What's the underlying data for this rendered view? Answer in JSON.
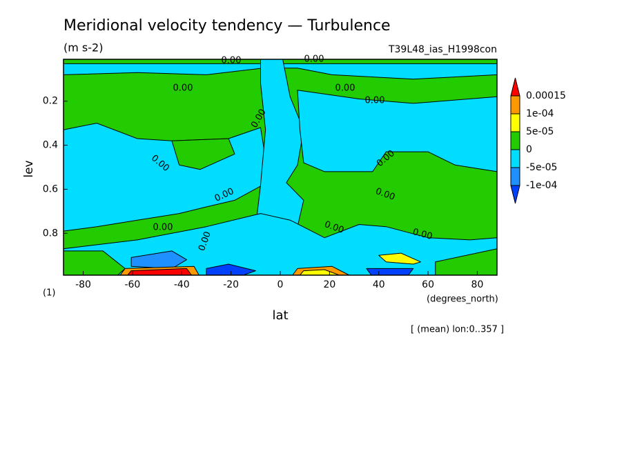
{
  "chart_data": {
    "type": "contour",
    "title": "Meridional velocity tendency — Turbulence",
    "units": "(m s-2)",
    "run": "T39L48_ias_H1998con",
    "xlabel": "lat",
    "x_unit": "(degrees_north)",
    "ylabel": "lev",
    "y_unit": "(1)",
    "footnote": "[ (mean) lon:0..357 ]",
    "xlim": [
      -88,
      88
    ],
    "ylim": [
      0.99,
      0.01
    ],
    "xticks": [
      -80,
      -60,
      -40,
      -20,
      0,
      20,
      40,
      60,
      80
    ],
    "yticks": [
      0.2,
      0.4,
      0.6,
      0.8
    ],
    "levels": [
      {
        "value": 0.00015,
        "label": "0.00015"
      },
      {
        "value": 0.0001,
        "label": "1e-04"
      },
      {
        "value": 5e-05,
        "label": "5e-05"
      },
      0,
      {
        "value": -5e-05,
        "label": "-5e-05"
      },
      {
        "value": -0.0001,
        "label": "-1e-04"
      }
    ],
    "colors": [
      "#ff0000",
      "#ff9900",
      "#ffff00",
      "#22cc00",
      "#00ddff",
      "#1e90ff",
      "#0040ff"
    ],
    "background_band": 3,
    "regions": [
      {
        "band": 4,
        "lat": [
          -88,
          88,
          88,
          54,
          21,
          7,
          -7,
          -30,
          -58,
          -88
        ],
        "lev": [
          0.03,
          0.03,
          0.08,
          0.1,
          0.08,
          0.05,
          0.05,
          0.08,
          0.07,
          0.08
        ]
      },
      {
        "band": 4,
        "lat": [
          -88,
          -74.5,
          -58,
          -44,
          -21,
          -8,
          -6,
          -7,
          -18.5,
          -30,
          -41,
          -58,
          -74.5,
          -88
        ],
        "lev": [
          0.33,
          0.3,
          0.37,
          0.38,
          0.37,
          0.32,
          0.46,
          0.58,
          0.65,
          0.68,
          0.71,
          0.74,
          0.77,
          0.79
        ]
      },
      {
        "band": 3,
        "lat": [
          -44,
          -21,
          -18.5,
          -32.5,
          -41
        ],
        "lev": [
          0.38,
          0.37,
          0.44,
          0.51,
          0.49
        ]
      },
      {
        "band": 4,
        "lat": [
          -8,
          1,
          4,
          9.5,
          7,
          2.5,
          9.5,
          7,
          1,
          -8,
          -10,
          -8,
          -6,
          -8
        ],
        "lev": [
          0.01,
          0.01,
          0.18,
          0.33,
          0.49,
          0.57,
          0.65,
          0.77,
          0.99,
          0.99,
          0.77,
          0.58,
          0.33,
          0.12
        ]
      },
      {
        "band": 4,
        "lat": [
          7,
          32,
          54,
          88,
          88,
          71,
          60,
          43,
          37.5,
          18,
          9.5,
          8
        ],
        "lev": [
          0.15,
          0.19,
          0.21,
          0.18,
          0.52,
          0.49,
          0.43,
          0.43,
          0.52,
          0.52,
          0.48,
          0.33
        ]
      },
      {
        "band": 4,
        "lat": [
          -88,
          -58,
          -30,
          -8,
          4,
          18,
          32,
          43,
          60,
          77,
          88,
          88,
          -88
        ],
        "lev": [
          0.87,
          0.83,
          0.77,
          0.71,
          0.74,
          0.82,
          0.76,
          0.77,
          0.82,
          0.83,
          0.82,
          0.99,
          0.99
        ]
      },
      {
        "band": 3,
        "lat": [
          -88,
          -72,
          -63,
          -66,
          -88
        ],
        "lev": [
          0.88,
          0.88,
          0.96,
          0.99,
          0.99
        ]
      },
      {
        "band": 3,
        "lat": [
          63,
          88,
          88,
          63
        ],
        "lev": [
          0.93,
          0.87,
          0.99,
          0.99
        ]
      },
      {
        "band": 5,
        "lat": [
          -60.5,
          -44,
          -38,
          -44,
          -60.5
        ],
        "lev": [
          0.91,
          0.88,
          0.92,
          0.96,
          0.95
        ]
      },
      {
        "band": 6,
        "lat": [
          -30,
          -21,
          -10,
          -15,
          -30
        ],
        "lev": [
          0.96,
          0.94,
          0.97,
          0.99,
          0.99
        ]
      },
      {
        "band": 1,
        "lat": [
          -63,
          -35,
          -33,
          -65
        ],
        "lev": [
          0.96,
          0.95,
          0.99,
          0.99
        ]
      },
      {
        "band": 0,
        "lat": [
          -60.5,
          -38,
          -36,
          -62
        ],
        "lev": [
          0.97,
          0.96,
          0.99,
          0.99
        ]
      },
      {
        "band": 1,
        "lat": [
          7,
          21,
          28,
          5
        ],
        "lev": [
          0.96,
          0.95,
          0.99,
          0.99
        ]
      },
      {
        "band": 2,
        "lat": [
          9.5,
          18,
          24,
          8
        ],
        "lev": [
          0.97,
          0.965,
          0.99,
          0.99
        ]
      },
      {
        "band": 6,
        "lat": [
          35,
          54,
          52,
          37
        ],
        "lev": [
          0.96,
          0.96,
          0.99,
          0.99
        ]
      },
      {
        "band": 2,
        "lat": [
          40,
          49,
          57,
          54,
          43
        ],
        "lev": [
          0.9,
          0.89,
          0.93,
          0.94,
          0.93
        ]
      }
    ],
    "contour_labels": [
      "0.00",
      "0.00",
      "0.00",
      "0.00",
      "0.00",
      "0.00",
      "0.00",
      "0.00",
      "0.00",
      "0.00",
      "0.00",
      "0.00",
      "0.00",
      "0.00"
    ]
  }
}
